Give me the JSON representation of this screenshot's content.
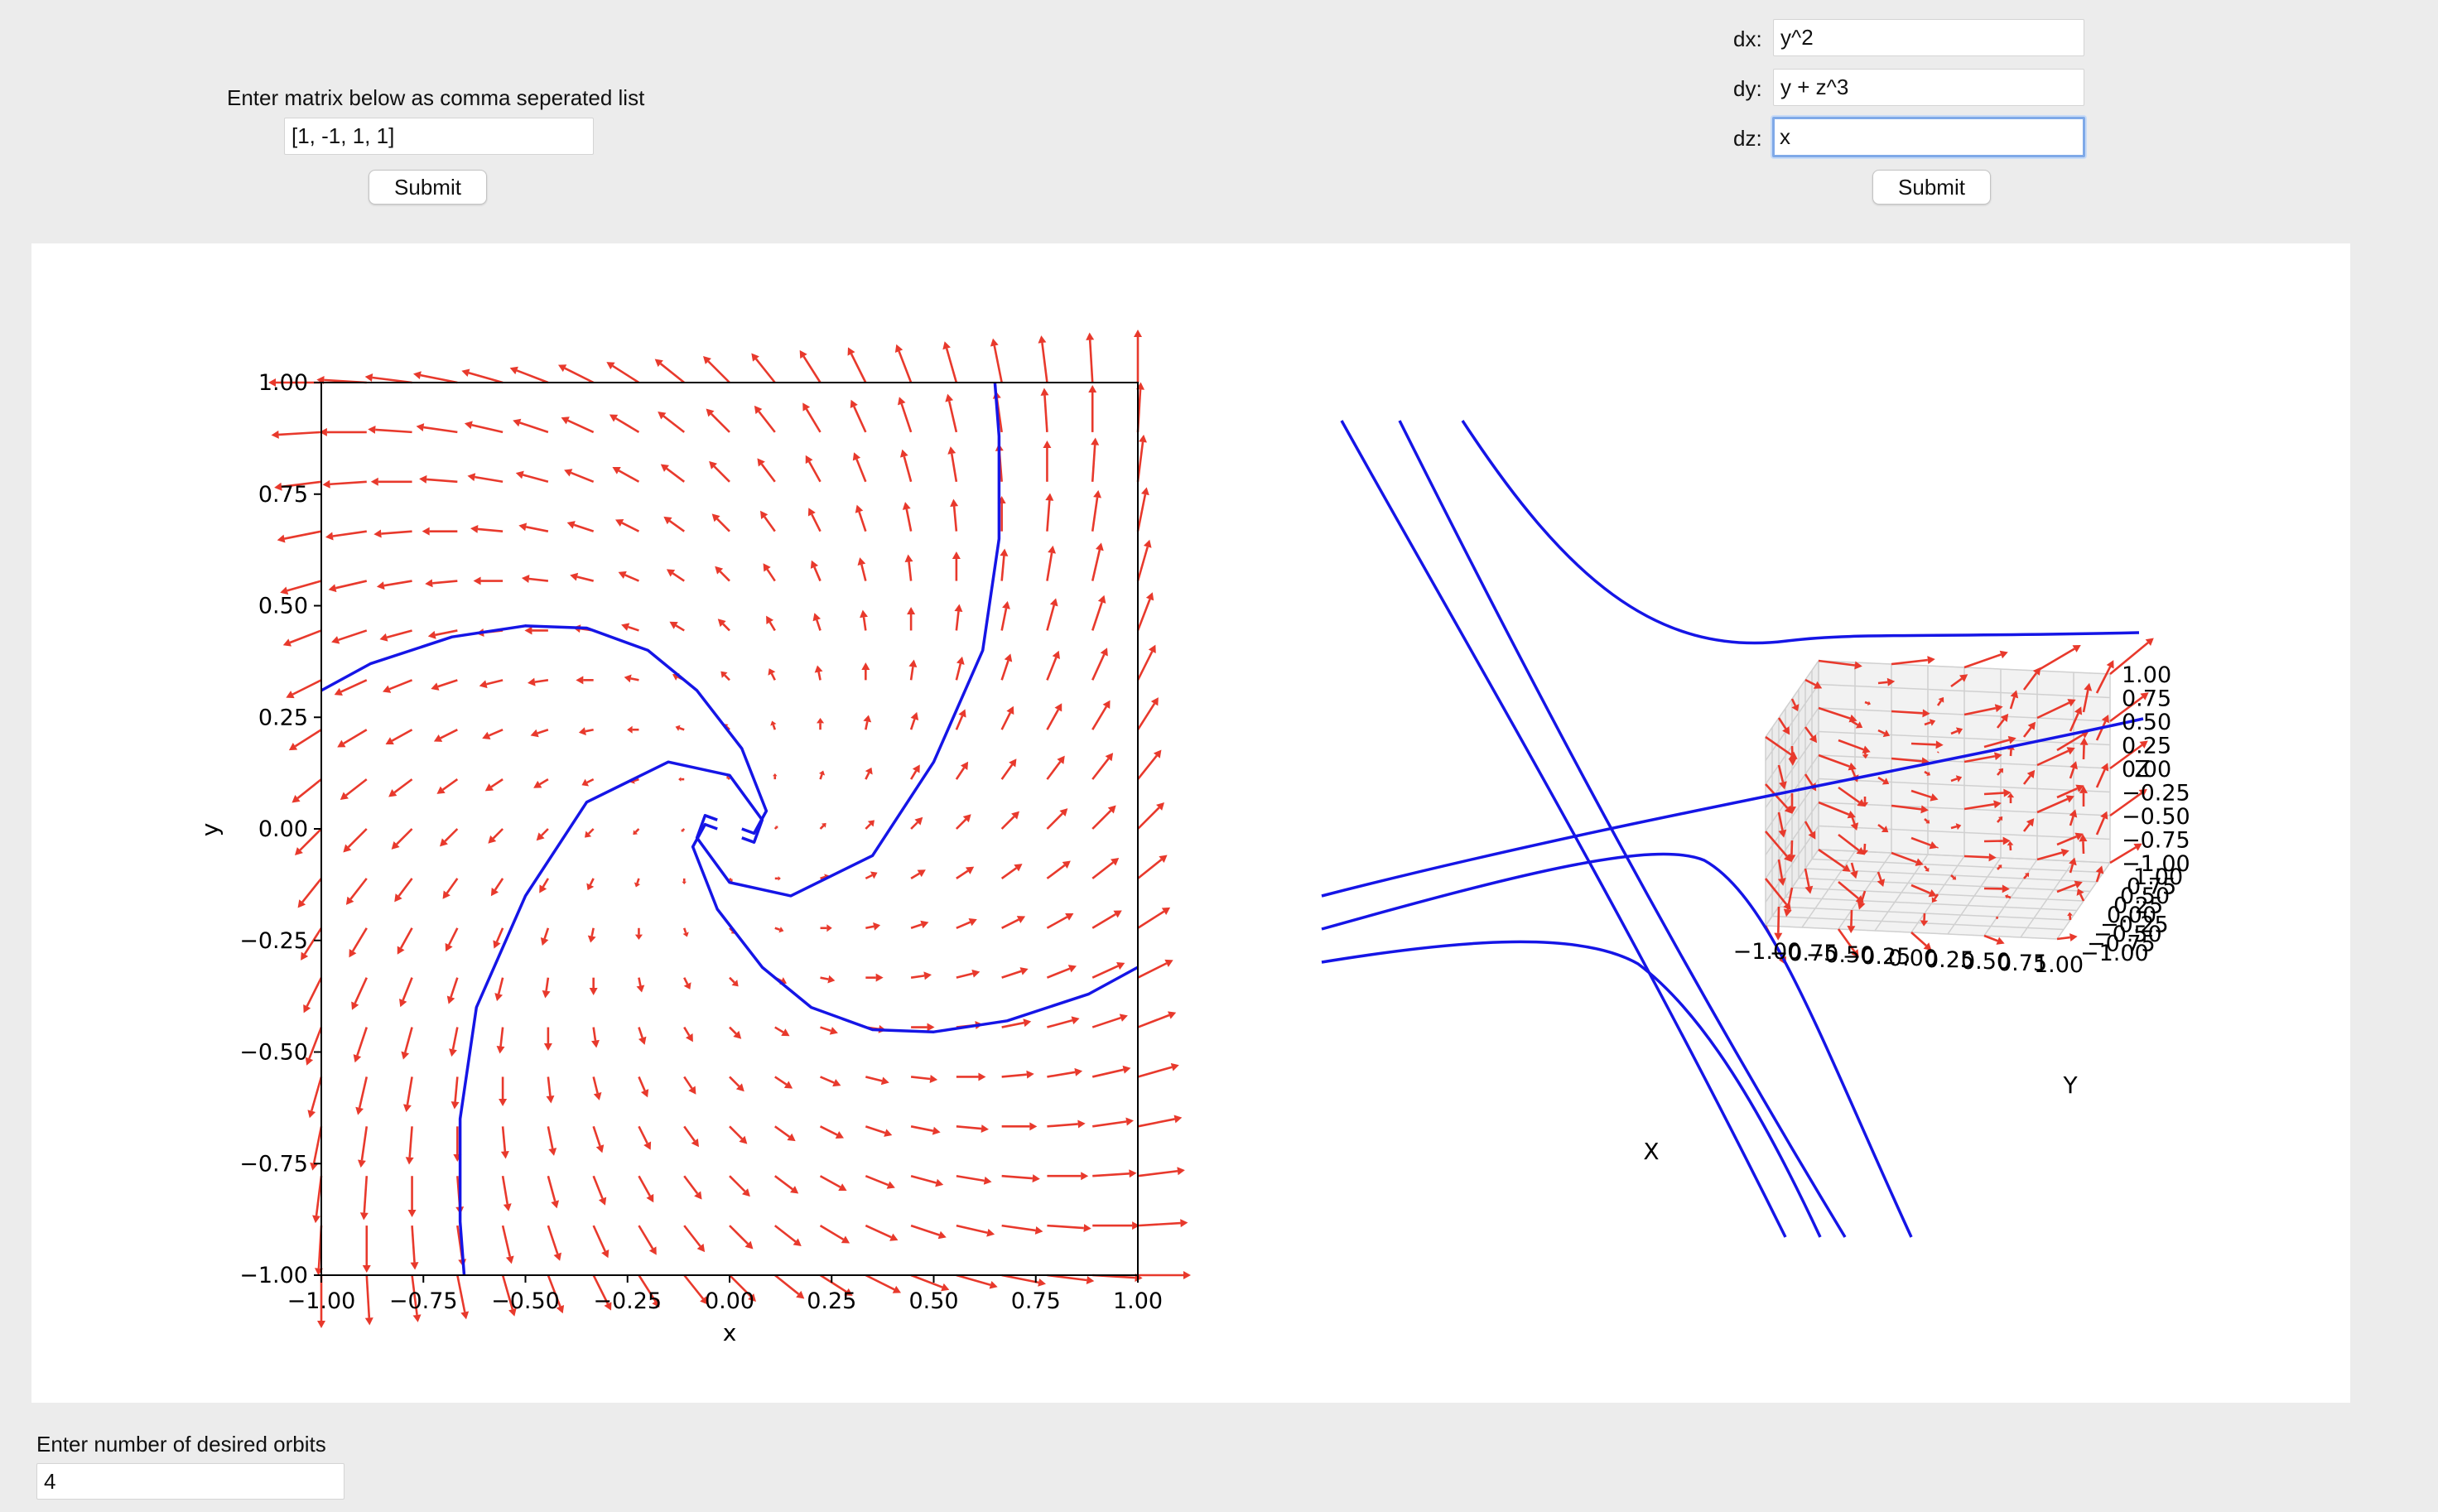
{
  "matrix_panel": {
    "prompt": "Enter matrix below as comma seperated list",
    "matrix_value": "[1, -1, 1, 1]",
    "submit_label": "Submit"
  },
  "equations_panel": {
    "dx_label": "dx:",
    "dx_value": "y^2",
    "dy_label": "dy:",
    "dy_value": "y + z^3",
    "dz_label": "dz:",
    "dz_value": "x",
    "submit_label": "Submit"
  },
  "orbits_panel": {
    "prompt": "Enter number of desired orbits",
    "orbits_value": "4"
  },
  "colors": {
    "arrow": "#e8392c",
    "orbit": "#1515e6",
    "grid": "#d0d0d0",
    "pane": "#f2f2f2"
  },
  "chart_data": [
    {
      "type": "vector_field",
      "system_matrix": [
        [
          1,
          -1
        ],
        [
          1,
          1
        ]
      ],
      "xlabel": "x",
      "ylabel": "y",
      "xlim": [
        -1,
        1
      ],
      "ylim": [
        -1,
        1
      ],
      "xticks": [
        "−1.00",
        "−0.75",
        "−0.50",
        "−0.25",
        "0.00",
        "0.25",
        "0.50",
        "0.75",
        "1.00"
      ],
      "yticks": [
        "−1.00",
        "−0.75",
        "−0.50",
        "−0.25",
        "0.00",
        "0.25",
        "0.50",
        "0.75",
        "1.00"
      ],
      "grid": false,
      "series": [
        {
          "values": [
            [
              -1.0,
              0.31
            ],
            [
              -0.88,
              0.37
            ],
            [
              -0.68,
              0.43
            ],
            [
              -0.5,
              0.455
            ],
            [
              -0.35,
              0.45
            ],
            [
              -0.2,
              0.4
            ],
            [
              -0.08,
              0.31
            ],
            [
              0.03,
              0.18
            ],
            [
              0.09,
              0.04
            ],
            [
              0.06,
              -0.01
            ],
            [
              0.03,
              0.0
            ]
          ]
        },
        {
          "values": [
            [
              0.65,
              1.0
            ],
            [
              0.66,
              0.88
            ],
            [
              0.66,
              0.65
            ],
            [
              0.62,
              0.4
            ],
            [
              0.5,
              0.15
            ],
            [
              0.35,
              -0.06
            ],
            [
              0.15,
              -0.15
            ],
            [
              0.0,
              -0.12
            ],
            [
              -0.08,
              -0.02
            ],
            [
              -0.06,
              0.03
            ],
            [
              -0.03,
              0.02
            ]
          ]
        },
        {
          "values": [
            [
              1.0,
              -0.31
            ],
            [
              0.88,
              -0.37
            ],
            [
              0.68,
              -0.43
            ],
            [
              0.5,
              -0.455
            ],
            [
              0.35,
              -0.45
            ],
            [
              0.2,
              -0.4
            ],
            [
              0.08,
              -0.31
            ],
            [
              -0.03,
              -0.18
            ],
            [
              -0.09,
              -0.04
            ],
            [
              -0.06,
              0.01
            ],
            [
              -0.03,
              0.0
            ]
          ]
        },
        {
          "values": [
            [
              -0.65,
              -1.0
            ],
            [
              -0.66,
              -0.88
            ],
            [
              -0.66,
              -0.65
            ],
            [
              -0.62,
              -0.4
            ],
            [
              -0.5,
              -0.15
            ],
            [
              -0.35,
              0.06
            ],
            [
              -0.15,
              0.15
            ],
            [
              0.0,
              0.12
            ],
            [
              0.08,
              0.02
            ],
            [
              0.06,
              -0.03
            ],
            [
              0.03,
              -0.02
            ]
          ]
        }
      ]
    },
    {
      "type": "vector_field_3d",
      "equations": {
        "dx": "y^2",
        "dy": "y + z^3",
        "dz": "x"
      },
      "xlabel": "X",
      "ylabel": "Y",
      "zlabel": "Z",
      "xlim": [
        -1,
        1
      ],
      "ylim": [
        -1,
        1
      ],
      "zlim": [
        -1,
        1
      ],
      "xticks": [
        "−1.00",
        "−0.75",
        "−0.50",
        "−0.25",
        "0.00",
        "0.25",
        "0.50",
        "0.75",
        "1.00"
      ],
      "yticks": [
        "−1.00",
        "−0.75",
        "−0.50",
        "−0.25",
        "0.00",
        "0.25",
        "0.50",
        "0.75",
        "1.00"
      ],
      "zticks": [
        "−1.00",
        "−0.75",
        "−0.50",
        "−0.25",
        "0.00",
        "0.25",
        "0.50",
        "0.75",
        "1.00"
      ],
      "grid": true,
      "orbit_count": 4
    }
  ]
}
